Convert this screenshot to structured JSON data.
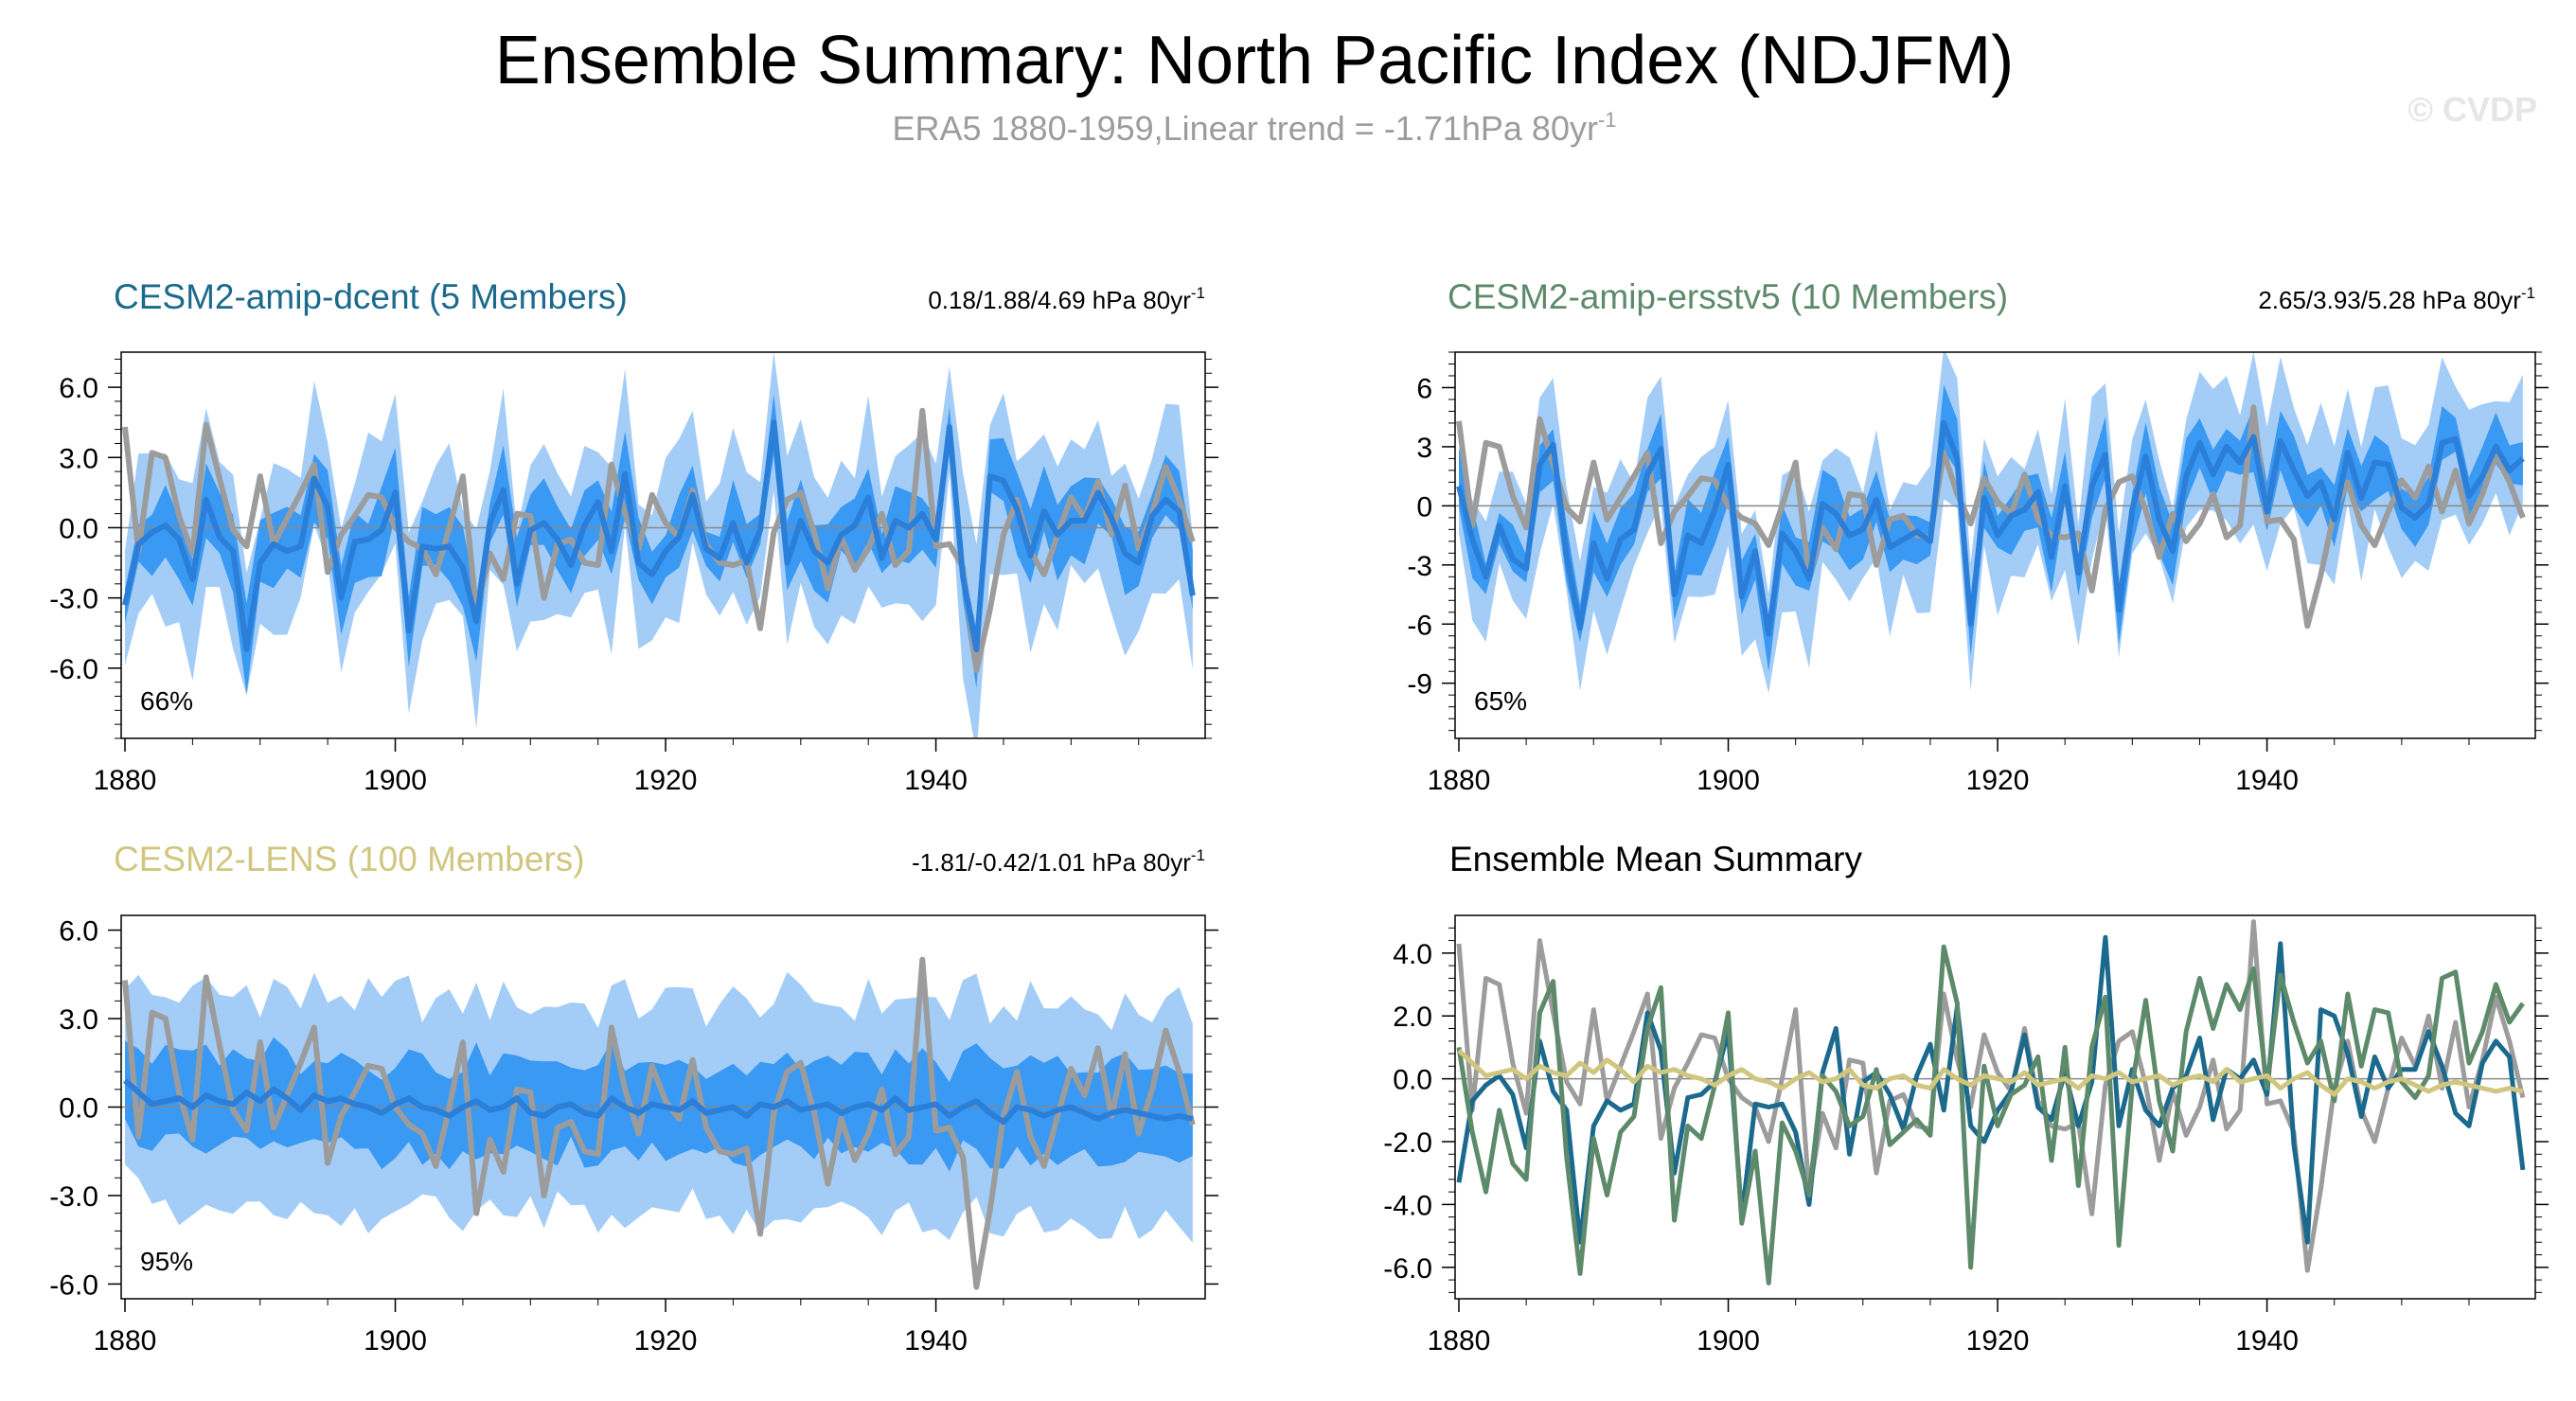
{
  "title": "Ensemble Summary: North Pacific Index (NDJFM)",
  "subtitle": "ERA5 1880-1959,Linear trend = -1.71hPa 80yr",
  "subtitle_sup": "-1",
  "watermark": "© CVDP",
  "colors": {
    "band_outer": "#a3cdf7",
    "band_inner": "#3a99f2",
    "ens_mean_line": "#2c7fd9",
    "obs_line": "#9c9c9c",
    "zero_line": "#888888",
    "dcent": "#1b6a8d",
    "ersstv5": "#5d8a6a",
    "lens": "#d1c67f"
  },
  "chart_data": [
    {
      "type": "line",
      "title": "CESM2-amip-dcent (5 Members)",
      "title_color": "#1b6a8d",
      "trend_text": "0.18/1.88/4.69 hPa 80yr",
      "trend_sup": "-1",
      "percent_label": "66%",
      "xlim": [
        1880,
        1959
      ],
      "ylim": [
        -9,
        7.5
      ],
      "yticks": [
        -6,
        -3,
        0,
        3,
        6
      ],
      "ytick_labels": [
        "-6.0",
        "-3.0",
        "0.0",
        "3.0",
        "6.0"
      ],
      "xticks": [
        1880,
        1900,
        1920,
        1940
      ],
      "xtick_labels": [
        "1880",
        "1900",
        "1920",
        "1940"
      ],
      "ens_mean": [
        -3.3,
        -0.7,
        -0.2,
        0.1,
        -0.5,
        -2.2,
        1.2,
        -0.4,
        -1.0,
        -5.2,
        -1.5,
        -0.7,
        -1.0,
        -0.8,
        2.1,
        0.9,
        -3.0,
        -0.6,
        -0.5,
        -0.1,
        1.5,
        -4.4,
        -0.8,
        -0.9,
        -0.8,
        -1.7,
        -4.0,
        0.2,
        1.6,
        -2.4,
        -0.1,
        0.2,
        -0.5,
        -1.6,
        0.1,
        1.1,
        -1.0,
        2.3,
        -1.5,
        -2.0,
        -1.0,
        -0.4,
        1.4,
        -0.9,
        -1.3,
        0.2,
        -1.5,
        -0.1,
        4.5,
        -1.5,
        0.3,
        -1.0,
        -1.5,
        -0.3,
        0.1,
        1.3,
        -1.3,
        0.3,
        0.0,
        0.6,
        -0.5,
        4.3,
        -2.1,
        -5.2,
        2.2,
        2.0,
        0.8,
        -1.2,
        0.7,
        -0.3,
        0.3,
        0.3,
        1.5,
        0.4,
        -1.1,
        -1.5,
        0.5,
        1.2,
        0.7,
        -2.9
      ]
    },
    {
      "type": "line",
      "title": "CESM2-amip-ersstv5 (10 Members)",
      "title_color": "#5d8a6a",
      "trend_text": "2.65/3.93/5.28 hPa 80yr",
      "trend_sup": "-1",
      "percent_label": "65%",
      "xlim": [
        1880,
        1959
      ],
      "ylim": [
        -11.8,
        7.8
      ],
      "yticks": [
        -9,
        -6,
        -3,
        0,
        3,
        6
      ],
      "ytick_labels": [
        "-9",
        "-6",
        "-3",
        "0",
        "3",
        "6"
      ],
      "xticks": [
        1880,
        1900,
        1920,
        1940
      ],
      "xtick_labels": [
        "1880",
        "1900",
        "1920",
        "1940"
      ],
      "ens_mean": [
        1.0,
        -1.7,
        -3.6,
        -1.0,
        -2.7,
        -3.2,
        2.1,
        3.1,
        -2.5,
        -6.2,
        -1.9,
        -3.7,
        -1.7,
        -1.2,
        1.6,
        2.9,
        -4.5,
        -1.5,
        -1.9,
        -0.2,
        2.1,
        -4.6,
        -2.3,
        -6.5,
        -1.4,
        -2.3,
        -3.7,
        0.1,
        -0.4,
        -1.5,
        -1.2,
        0.3,
        -2.1,
        -1.7,
        -1.3,
        -1.8,
        4.2,
        2.4,
        -6.0,
        0.4,
        -1.5,
        -0.5,
        -0.2,
        0.7,
        -2.6,
        1.0,
        -3.4,
        1.0,
        2.6,
        -5.3,
        -0.2,
        2.5,
        -0.7,
        -2.3,
        1.5,
        3.2,
        1.6,
        3.0,
        2.2,
        3.5,
        -0.3,
        3.3,
        1.8,
        0.5,
        1.2,
        -0.7,
        2.7,
        0.4,
        2.2,
        2.1,
        -0.1,
        -0.6,
        0.1,
        3.2,
        3.4,
        0.5,
        1.5,
        3.0,
        1.8,
        2.4
      ]
    },
    {
      "type": "line",
      "title": "CESM2-LENS (100 Members)",
      "title_color": "#d1c67f",
      "trend_text": "-1.81/-0.42/1.01 hPa 80yr",
      "trend_sup": "-1",
      "percent_label": "95%",
      "xlim": [
        1880,
        1959
      ],
      "ylim": [
        -6.5,
        6.5
      ],
      "yticks": [
        -6,
        -3,
        0,
        3,
        6
      ],
      "ytick_labels": [
        "-6.0",
        "-3.0",
        "0.0",
        "3.0",
        "6.0"
      ],
      "xticks": [
        1880,
        1900,
        1920,
        1940
      ],
      "xtick_labels": [
        "1880",
        "1900",
        "1920",
        "1940"
      ],
      "ens_mean": [
        0.9,
        0.5,
        0.1,
        0.2,
        0.3,
        0.0,
        0.4,
        0.2,
        0.1,
        0.5,
        0.2,
        0.6,
        0.3,
        -0.1,
        0.4,
        0.2,
        0.3,
        0.1,
        0.0,
        -0.2,
        0.1,
        0.3,
        0.0,
        -0.1,
        -0.3,
        0.0,
        0.2,
        -0.1,
        0.0,
        0.3,
        -0.2,
        -0.3,
        0.0,
        0.1,
        -0.2,
        -0.3,
        0.3,
        0.0,
        -0.2,
        0.1,
        0.0,
        -0.1,
        0.2,
        -0.2,
        -0.1,
        0.0,
        -0.3,
        0.1,
        0.0,
        0.2,
        -0.1,
        0.0,
        0.1,
        -0.2,
        0.0,
        0.1,
        -0.1,
        0.3,
        -0.1,
        0.0,
        0.1,
        -0.3,
        0.0,
        0.2,
        -0.2,
        -0.5,
        0.0,
        -0.1,
        -0.3,
        -0.1,
        0.0,
        -0.2,
        -0.4,
        -0.2,
        -0.1,
        -0.2,
        -0.3,
        -0.4,
        -0.3,
        -0.4
      ],
      "ens_line_color": "#2c7fd9"
    },
    {
      "type": "line",
      "title": "Ensemble Mean Summary",
      "title_color": "#000000",
      "xlim": [
        1880,
        1959
      ],
      "ylim": [
        -7.0,
        5.2
      ],
      "yticks": [
        -6,
        -4,
        -2,
        0,
        2,
        4
      ],
      "ytick_labels": [
        "-6.0",
        "-4.0",
        "-2.0",
        "0.0",
        "2.0",
        "4.0"
      ],
      "xticks": [
        1880,
        1900,
        1920,
        1940
      ],
      "xtick_labels": [
        "1880",
        "1900",
        "1920",
        "1940"
      ],
      "series": [
        {
          "name": "ERA5",
          "color": "#9c9c9c",
          "ref": "observed"
        },
        {
          "name": "CESM2-amip-dcent",
          "color": "#1b6a8d",
          "ref": 0
        },
        {
          "name": "CESM2-amip-ersstv5",
          "color": "#5d8a6a",
          "ref": 1
        },
        {
          "name": "CESM2-LENS",
          "color": "#d1c67f",
          "ref": 2
        }
      ]
    }
  ],
  "observed": {
    "name": "ERA5",
    "values": [
      4.3,
      -1.0,
      3.2,
      3.0,
      0.5,
      -1.1,
      4.4,
      2.1,
      -0.1,
      -0.8,
      2.2,
      -0.7,
      0.4,
      1.5,
      2.7,
      -1.9,
      -0.3,
      0.5,
      1.4,
      1.3,
      0.0,
      -0.6,
      -0.9,
      -2.0,
      0.0,
      2.2,
      -3.6,
      -1.1,
      -2.2,
      0.6,
      0.5,
      -3.0,
      -0.7,
      -0.5,
      -1.5,
      -1.6,
      2.7,
      0.6,
      -0.9,
      1.4,
      0.2,
      -0.4,
      1.6,
      -0.7,
      -1.5,
      -1.6,
      -1.4,
      -4.3,
      -0.2,
      1.2,
      1.5,
      -0.2,
      -2.6,
      -0.4,
      -1.8,
      -0.9,
      0.6,
      -1.6,
      -1.0,
      5.0,
      -0.8,
      -0.7,
      -1.7,
      -6.1,
      -3.5,
      -0.3,
      1.2,
      -1.0,
      -2.0,
      -0.3,
      1.3,
      0.4,
      2.0,
      -0.3,
      1.8,
      -0.9,
      0.6,
      2.6,
      1.2,
      -0.6
    ]
  }
}
